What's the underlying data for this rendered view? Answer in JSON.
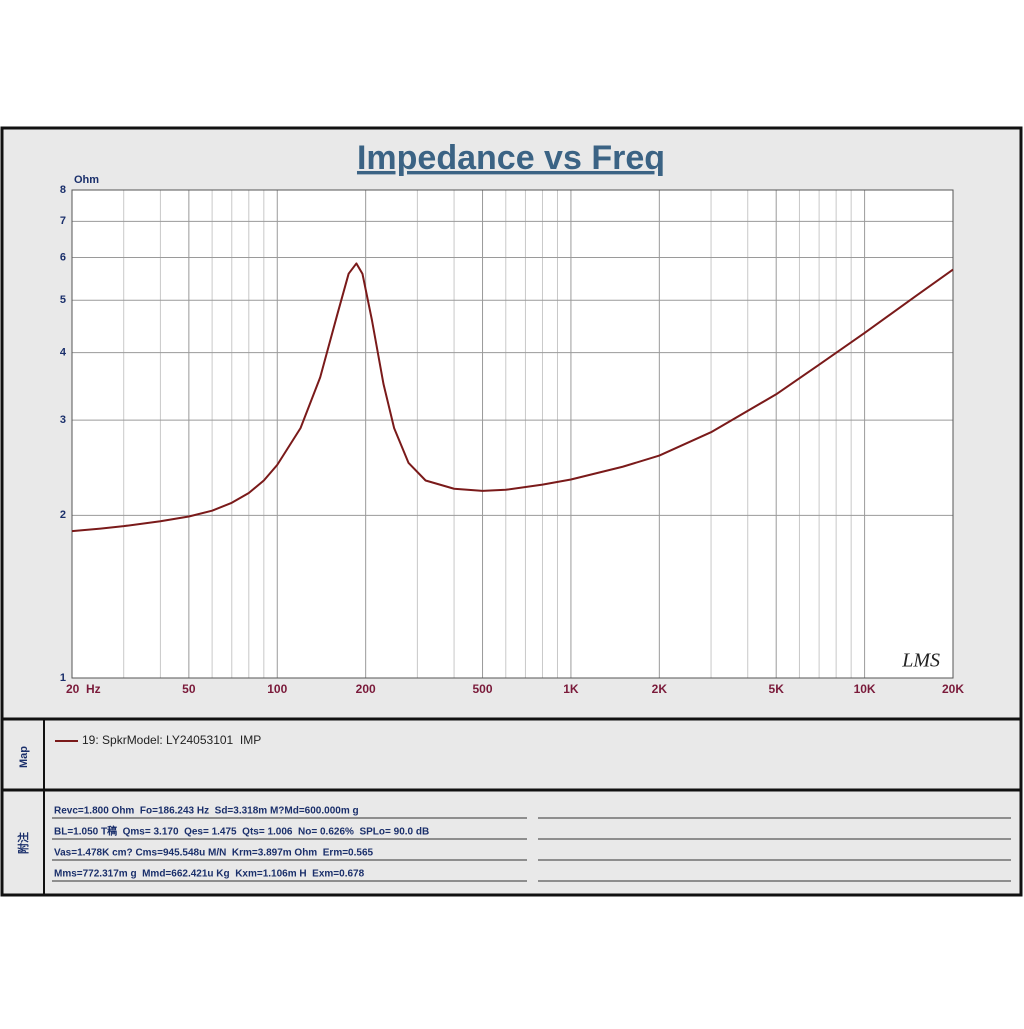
{
  "chart_data": {
    "type": "line",
    "title": "Impedance vs Freq",
    "y_label": "Ohm",
    "x": [
      20,
      25,
      30,
      40,
      50,
      60,
      70,
      80,
      90,
      100,
      120,
      140,
      160,
      175,
      186,
      195,
      210,
      230,
      250,
      280,
      320,
      400,
      500,
      600,
      800,
      1000,
      1500,
      2000,
      3000,
      5000,
      7000,
      10000,
      15000,
      20000
    ],
    "series": [
      {
        "name": "19: SpkrModel: LY24053101  IMP",
        "color": "#7a1a1a",
        "values": [
          1.87,
          1.89,
          1.91,
          1.95,
          1.99,
          2.04,
          2.11,
          2.2,
          2.32,
          2.48,
          2.9,
          3.6,
          4.7,
          5.6,
          5.85,
          5.6,
          4.6,
          3.5,
          2.9,
          2.5,
          2.32,
          2.24,
          2.22,
          2.23,
          2.28,
          2.33,
          2.46,
          2.58,
          2.85,
          3.35,
          3.8,
          4.35,
          5.1,
          5.7
        ]
      }
    ],
    "xlim": [
      20,
      20000
    ],
    "ylim": [
      1,
      8
    ],
    "xscale": "log",
    "yscale": "log",
    "grid": true,
    "xticks": [
      {
        "value": 20,
        "label": "20  Hz"
      },
      50,
      100,
      200,
      500,
      {
        "value": 1000,
        "label": "1K"
      },
      {
        "value": 2000,
        "label": "2K"
      },
      {
        "value": 5000,
        "label": "5K"
      },
      {
        "value": 10000,
        "label": "10K"
      },
      {
        "value": 20000,
        "label": "20K"
      }
    ],
    "yticks": [
      1,
      2,
      3,
      4,
      5,
      6,
      7,
      8
    ],
    "xgrid": [
      30,
      40,
      60,
      70,
      80,
      90,
      300,
      400,
      600,
      700,
      800,
      900,
      3000,
      4000,
      6000,
      7000,
      8000,
      9000
    ],
    "watermark": "LMS"
  },
  "panels": {
    "map_label": "Map",
    "notes_label": "附注",
    "notes": [
      "Revc=1.800 Ohm  Fo=186.243 Hz  Sd=3.318m M?Md=600.000m g",
      "BL=1.050 T稿  Qms= 3.170  Qes= 1.475  Qts= 1.006  No= 0.626%  SPLo= 90.0 dB",
      "Vas=1.478K cm? Cms=945.548u M/N  Krm=3.897m Ohm  Erm=0.565",
      "Mms=772.317m g  Mmd=662.421u Kg  Kxm=1.106m H  Exm=0.678"
    ]
  }
}
